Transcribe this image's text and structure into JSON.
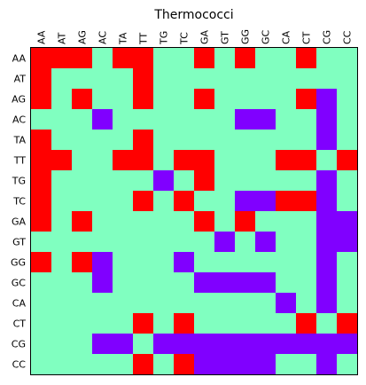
{
  "chart_data": {
    "type": "heatmap",
    "title": "Thermococci",
    "xlabel": "",
    "ylabel": "",
    "x_labels": [
      "AA",
      "AT",
      "AG",
      "AC",
      "TA",
      "TT",
      "TG",
      "TC",
      "GA",
      "GT",
      "GG",
      "GC",
      "CA",
      "CT",
      "CG",
      "CC"
    ],
    "y_labels": [
      "AA",
      "AT",
      "AG",
      "AC",
      "TA",
      "TT",
      "TG",
      "TC",
      "GA",
      "GT",
      "GG",
      "GC",
      "CA",
      "CT",
      "CG",
      "CC"
    ],
    "x_tick_position": "top",
    "grid": false,
    "legend": "none",
    "colors": {
      "0": "#80ffc0",
      "1": "#ff0000",
      "2": "#8000ff"
    },
    "matrix": [
      [
        1,
        1,
        1,
        0,
        1,
        1,
        0,
        0,
        1,
        0,
        1,
        0,
        0,
        1,
        0,
        0
      ],
      [
        1,
        0,
        0,
        0,
        0,
        1,
        0,
        0,
        0,
        0,
        0,
        0,
        0,
        0,
        0,
        0
      ],
      [
        1,
        0,
        1,
        0,
        0,
        1,
        0,
        0,
        1,
        0,
        0,
        0,
        0,
        1,
        2,
        0
      ],
      [
        0,
        0,
        0,
        2,
        0,
        0,
        0,
        0,
        0,
        0,
        2,
        2,
        0,
        0,
        2,
        0
      ],
      [
        1,
        0,
        0,
        0,
        0,
        1,
        0,
        0,
        0,
        0,
        0,
        0,
        0,
        0,
        2,
        0
      ],
      [
        1,
        1,
        0,
        0,
        1,
        1,
        0,
        1,
        1,
        0,
        0,
        0,
        1,
        1,
        0,
        1
      ],
      [
        1,
        0,
        0,
        0,
        0,
        0,
        2,
        0,
        1,
        0,
        0,
        0,
        0,
        0,
        2,
        0
      ],
      [
        1,
        0,
        0,
        0,
        0,
        1,
        0,
        1,
        0,
        0,
        2,
        2,
        1,
        1,
        2,
        0
      ],
      [
        1,
        0,
        1,
        0,
        0,
        0,
        0,
        0,
        1,
        0,
        1,
        0,
        0,
        0,
        2,
        2
      ],
      [
        0,
        0,
        0,
        0,
        0,
        0,
        0,
        0,
        0,
        2,
        0,
        2,
        0,
        0,
        2,
        2
      ],
      [
        1,
        0,
        1,
        2,
        0,
        0,
        0,
        2,
        0,
        0,
        0,
        0,
        0,
        0,
        2,
        0
      ],
      [
        0,
        0,
        0,
        2,
        0,
        0,
        0,
        0,
        2,
        2,
        2,
        2,
        0,
        0,
        2,
        0
      ],
      [
        0,
        0,
        0,
        0,
        0,
        0,
        0,
        0,
        0,
        0,
        0,
        0,
        2,
        0,
        2,
        0
      ],
      [
        0,
        0,
        0,
        0,
        0,
        1,
        0,
        1,
        0,
        0,
        0,
        0,
        0,
        1,
        0,
        1
      ],
      [
        0,
        0,
        0,
        2,
        2,
        0,
        2,
        2,
        2,
        2,
        2,
        2,
        2,
        2,
        2,
        2
      ],
      [
        0,
        0,
        0,
        0,
        0,
        1,
        0,
        1,
        2,
        2,
        2,
        2,
        0,
        0,
        2,
        0
      ]
    ]
  }
}
